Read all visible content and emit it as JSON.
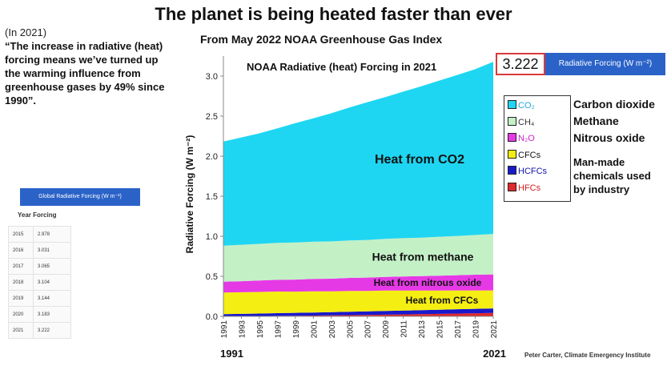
{
  "header": {
    "title": "The planet is being heated faster than ever",
    "year_note": "(In 2021)",
    "quote": "“The increase in radiative (heat) forcing means we’ve turned up the warming influence from greenhouse gases by 49% since 1990”.",
    "subtitle": "From May 2022 NOAA Greenhouse Gas Index"
  },
  "highlight": {
    "value": "3.222",
    "label": "Radiative Forcing (W m⁻²)"
  },
  "side_table": {
    "label": "Global Radiative Forcing (W m⁻²)",
    "header": "Year Forcing",
    "rows": [
      {
        "year": "2015",
        "value": "2.978"
      },
      {
        "year": "2016",
        "value": "3.031"
      },
      {
        "year": "2017",
        "value": "3.065"
      },
      {
        "year": "2018",
        "value": "3.104"
      },
      {
        "year": "2019",
        "value": "3.144"
      },
      {
        "year": "2020",
        "value": "3.183"
      },
      {
        "year": "2021",
        "value": "3.222"
      }
    ]
  },
  "legend": {
    "items": [
      {
        "label": "CO₂",
        "color": "#1ed6f2",
        "text_color": "#22a8d8"
      },
      {
        "label": "CH₄",
        "color": "#c4f0c6",
        "text_color": "#333333"
      },
      {
        "label": "N₂O",
        "color": "#e639e6",
        "text_color": "#cc22cc"
      },
      {
        "label": "CFCs",
        "color": "#f5ee13",
        "text_color": "#111111"
      },
      {
        "label": "HCFCs",
        "color": "#1919cc",
        "text_color": "#1414aa"
      },
      {
        "label": "HFCs",
        "color": "#e0292b",
        "text_color": "#d62020"
      }
    ],
    "descriptions": [
      "Carbon dioxide",
      "Methane",
      "Nitrous oxide",
      "Man-made chemicals used by industry"
    ]
  },
  "credit": "Peter Carter, Climate Emergency Institute",
  "chart_data": {
    "type": "area",
    "stacked": true,
    "title": "NOAA Radiative (heat) Forcing in 2021",
    "ylabel": "Radiative Forcing (W m⁻²)",
    "xlabel": "",
    "ylim": [
      0,
      3.25
    ],
    "yticks": [
      "0.0",
      "0.5",
      "1.0",
      "1.5",
      "2.0",
      "2.5",
      "3.0"
    ],
    "x": [
      1991,
      1993,
      1995,
      1997,
      1999,
      2001,
      2003,
      2005,
      2007,
      2009,
      2011,
      2013,
      2015,
      2017,
      2019,
      2021
    ],
    "x_range_labels": [
      "1991",
      "2021"
    ],
    "grid": false,
    "series": [
      {
        "name": "HFCs",
        "values": [
          0.002,
          0.003,
          0.004,
          0.006,
          0.008,
          0.01,
          0.012,
          0.015,
          0.018,
          0.021,
          0.024,
          0.027,
          0.031,
          0.035,
          0.039,
          0.043
        ]
      },
      {
        "name": "HCFCs",
        "values": [
          0.025,
          0.028,
          0.031,
          0.034,
          0.036,
          0.038,
          0.04,
          0.042,
          0.044,
          0.046,
          0.048,
          0.05,
          0.052,
          0.054,
          0.055,
          0.056
        ]
      },
      {
        "name": "CFCs",
        "values": [
          0.27,
          0.27,
          0.27,
          0.27,
          0.265,
          0.265,
          0.26,
          0.26,
          0.255,
          0.255,
          0.25,
          0.245,
          0.24,
          0.235,
          0.23,
          0.225
        ]
      },
      {
        "name": "N₂O",
        "values": [
          0.135,
          0.138,
          0.142,
          0.146,
          0.15,
          0.154,
          0.158,
          0.163,
          0.167,
          0.171,
          0.176,
          0.18,
          0.185,
          0.19,
          0.196,
          0.2
        ]
      },
      {
        "name": "CH₄",
        "values": [
          0.45,
          0.455,
          0.458,
          0.461,
          0.463,
          0.465,
          0.466,
          0.467,
          0.47,
          0.474,
          0.478,
          0.481,
          0.486,
          0.49,
          0.496,
          0.505
        ]
      },
      {
        "name": "CO₂",
        "values": [
          1.3,
          1.34,
          1.38,
          1.43,
          1.49,
          1.54,
          1.6,
          1.66,
          1.72,
          1.77,
          1.83,
          1.89,
          1.95,
          2.01,
          2.07,
          2.15
        ]
      }
    ],
    "annotations": [
      {
        "text": "Heat from CO2",
        "series": "CO₂"
      },
      {
        "text": "Heat from methane",
        "series": "CH₄"
      },
      {
        "text": "Heat from nitrous oxide",
        "series": "N₂O"
      },
      {
        "text": "Heat from CFCs",
        "series": "CFCs"
      }
    ]
  }
}
